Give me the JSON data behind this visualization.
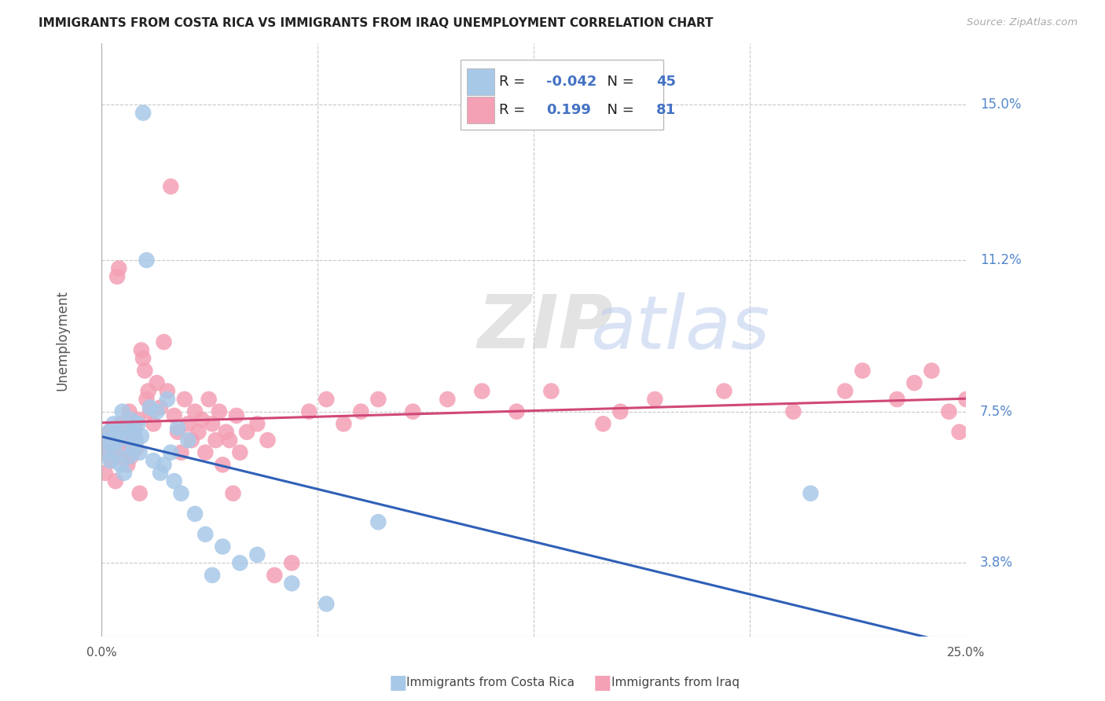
{
  "title": "IMMIGRANTS FROM COSTA RICA VS IMMIGRANTS FROM IRAQ UNEMPLOYMENT CORRELATION CHART",
  "source": "Source: ZipAtlas.com",
  "ylabel": "Unemployment",
  "yticks": [
    3.8,
    7.5,
    11.2,
    15.0
  ],
  "xlim": [
    0.0,
    25.0
  ],
  "ylim": [
    2.0,
    16.5
  ],
  "costa_rica_R": -0.042,
  "costa_rica_N": 45,
  "iraq_R": 0.199,
  "iraq_N": 81,
  "costa_rica_color": "#a8c8e8",
  "iraq_color": "#f4a0b5",
  "costa_rica_line_color": "#3060b8",
  "iraq_line_color": "#d04878",
  "background_color": "#ffffff",
  "grid_color": "#c8c8c8",
  "watermark_text": "ZIPatlas",
  "costa_rica_x": [
    0.1,
    0.15,
    0.2,
    0.25,
    0.3,
    0.35,
    0.4,
    0.45,
    0.5,
    0.55,
    0.6,
    0.65,
    0.7,
    0.75,
    0.8,
    0.85,
    0.9,
    0.95,
    1.0,
    1.05,
    1.1,
    1.15,
    1.2,
    1.3,
    1.4,
    1.5,
    1.6,
    1.7,
    1.8,
    1.9,
    2.0,
    2.1,
    2.2,
    2.3,
    2.5,
    2.7,
    3.0,
    3.2,
    3.5,
    4.0,
    4.5,
    5.5,
    6.5,
    8.0,
    20.5
  ],
  "costa_rica_y": [
    6.5,
    6.8,
    7.0,
    6.3,
    6.7,
    7.2,
    6.5,
    7.0,
    6.8,
    6.2,
    7.5,
    6.0,
    7.1,
    6.9,
    6.4,
    7.3,
    6.6,
    7.0,
    6.8,
    7.2,
    6.5,
    6.9,
    14.8,
    11.2,
    7.6,
    6.3,
    7.5,
    6.0,
    6.2,
    7.8,
    6.5,
    5.8,
    7.1,
    5.5,
    6.8,
    5.0,
    4.5,
    3.5,
    4.2,
    3.8,
    4.0,
    3.3,
    2.8,
    4.8,
    5.5
  ],
  "iraq_x": [
    0.1,
    0.15,
    0.2,
    0.25,
    0.3,
    0.35,
    0.4,
    0.45,
    0.5,
    0.55,
    0.6,
    0.65,
    0.7,
    0.75,
    0.8,
    0.85,
    0.9,
    0.95,
    1.0,
    1.05,
    1.1,
    1.15,
    1.2,
    1.25,
    1.3,
    1.35,
    1.4,
    1.5,
    1.6,
    1.7,
    1.8,
    1.9,
    2.0,
    2.1,
    2.2,
    2.3,
    2.4,
    2.5,
    2.6,
    2.7,
    2.8,
    2.9,
    3.0,
    3.1,
    3.2,
    3.3,
    3.4,
    3.5,
    3.6,
    3.7,
    3.8,
    3.9,
    4.0,
    4.2,
    4.5,
    4.8,
    5.0,
    5.5,
    6.0,
    6.5,
    7.0,
    7.5,
    8.0,
    9.0,
    10.0,
    11.0,
    12.0,
    13.0,
    14.5,
    15.0,
    16.0,
    18.0,
    20.0,
    21.5,
    22.0,
    23.0,
    23.5,
    24.0,
    24.5,
    24.8,
    25.0
  ],
  "iraq_y": [
    6.0,
    6.5,
    6.8,
    7.0,
    6.3,
    6.7,
    5.8,
    10.8,
    11.0,
    7.2,
    6.5,
    7.0,
    6.8,
    6.2,
    7.5,
    6.4,
    6.9,
    7.1,
    6.6,
    7.3,
    5.5,
    9.0,
    8.8,
    8.5,
    7.8,
    8.0,
    7.5,
    7.2,
    8.2,
    7.6,
    9.2,
    8.0,
    13.0,
    7.4,
    7.0,
    6.5,
    7.8,
    7.2,
    6.8,
    7.5,
    7.0,
    7.3,
    6.5,
    7.8,
    7.2,
    6.8,
    7.5,
    6.2,
    7.0,
    6.8,
    5.5,
    7.4,
    6.5,
    7.0,
    7.2,
    6.8,
    3.5,
    3.8,
    7.5,
    7.8,
    7.2,
    7.5,
    7.8,
    7.5,
    7.8,
    8.0,
    7.5,
    8.0,
    7.2,
    7.5,
    7.8,
    8.0,
    7.5,
    8.0,
    8.5,
    7.8,
    8.2,
    8.5,
    7.5,
    7.0,
    7.8
  ]
}
